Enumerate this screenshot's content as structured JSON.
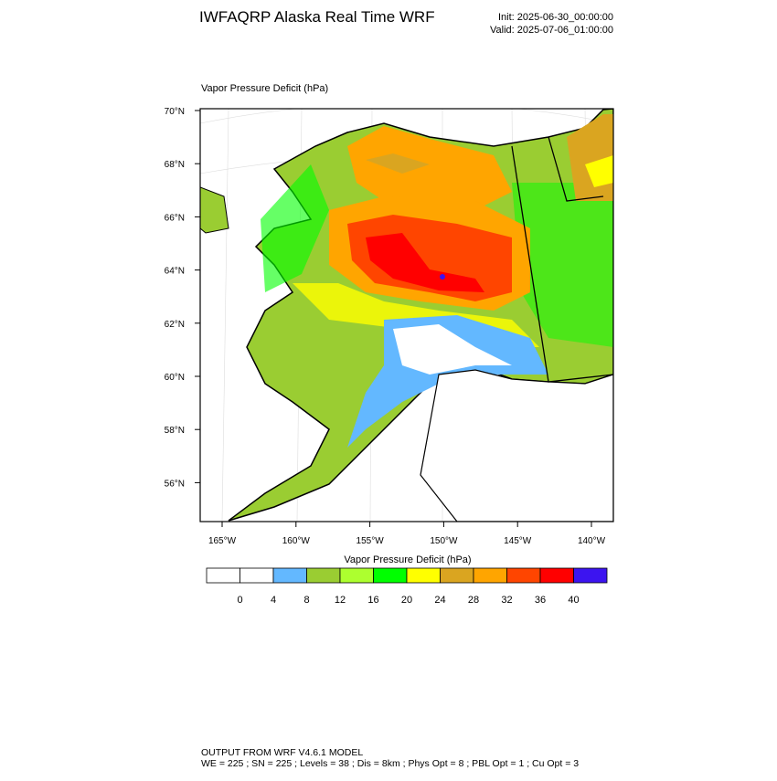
{
  "header": {
    "title": "IWFAQRP Alaska Real Time WRF",
    "init": "Init: 2025-06-30_00:00:00",
    "valid": "Valid: 2025-07-06_01:00:00"
  },
  "map": {
    "field_label": "Vapor Pressure Deficit   (hPa)",
    "lat_labels": [
      "70°N",
      "68°N",
      "66°N",
      "64°N",
      "62°N",
      "60°N",
      "58°N",
      "56°N"
    ],
    "lon_labels": [
      "165°W",
      "160°W",
      "155°W",
      "150°W",
      "145°W",
      "140°W"
    ]
  },
  "colorbar": {
    "title": "Vapor Pressure Deficit  (hPa)",
    "levels": [
      0,
      4,
      8,
      12,
      16,
      20,
      24,
      28,
      32,
      36,
      40
    ],
    "colors": [
      "#ffffff",
      "#ffffff",
      "#63b8ff",
      "#9acd32",
      "#adff2f",
      "#00ff00",
      "#ffff00",
      "#daa520",
      "#ffa500",
      "#ff4500",
      "#ff0000",
      "#3c14f0"
    ]
  },
  "footer": {
    "line1": "OUTPUT FROM WRF V4.6.1 MODEL",
    "line2": "WE = 225 ; SN = 225 ; Levels = 38 ; Dis = 8km ; Phys Opt = 8 ; PBL Opt = 1 ; Cu Opt = 3"
  }
}
